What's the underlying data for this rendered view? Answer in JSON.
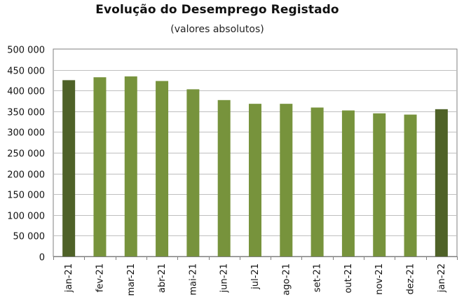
{
  "chart_data": {
    "type": "bar",
    "title": "Evolução do Desemprego Registado",
    "subtitle": "(valores absolutos)",
    "xlabel": "",
    "ylabel": "",
    "categories": [
      "jan-21",
      "fev-21",
      "mar-21",
      "abr-21",
      "mai-21",
      "jun-21",
      "jul-21",
      "ago-21",
      "set-21",
      "out-21",
      "nov-21",
      "dez-21",
      "jan-22"
    ],
    "values": [
      425000,
      432000,
      434000,
      423000,
      403000,
      377000,
      368000,
      368000,
      359000,
      352000,
      345000,
      342000,
      355000
    ],
    "ylim": [
      0,
      500000
    ],
    "yticks": [
      0,
      50000,
      100000,
      150000,
      200000,
      250000,
      300000,
      350000,
      400000,
      450000,
      500000
    ],
    "ytick_labels": [
      "0",
      "50 000",
      "100 000",
      "150 000",
      "200 000",
      "250 000",
      "300 000",
      "350 000",
      "400 000",
      "450 000",
      "500 000"
    ],
    "grid": true,
    "legend": "none",
    "colors": {
      "bar": "#77933c",
      "bar_highlight": "#4f6228",
      "grid": "#bfbfbf",
      "axis": "#7f7f7f"
    },
    "highlight_categories": [
      "jan-21",
      "jan-22"
    ]
  }
}
